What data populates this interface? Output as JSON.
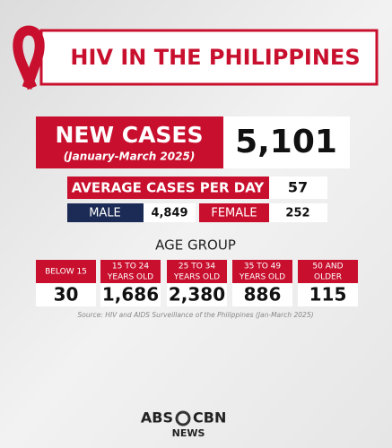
{
  "header": {
    "title": "HIV IN THE PHILIPPINES"
  },
  "new_cases": {
    "label": "NEW CASES",
    "period": "(January-March 2025)",
    "value": "5,101"
  },
  "average": {
    "label": "AVERAGE CASES PER DAY",
    "value": "57"
  },
  "sex": [
    {
      "label": "MALE",
      "value": "4,849"
    },
    {
      "label": "FEMALE",
      "value": "252"
    }
  ],
  "age": {
    "title": "AGE GROUP",
    "groups": [
      {
        "label": [
          "BELOW 15"
        ],
        "value": "30"
      },
      {
        "label": [
          "15 TO 24",
          "YEARS OLD"
        ],
        "value": "1,686"
      },
      {
        "label": [
          "25 TO 34",
          "YEARS OLD"
        ],
        "value": "2,380"
      },
      {
        "label": [
          "35 TO 49",
          "YEARS OLD"
        ],
        "value": "886"
      },
      {
        "label": [
          "50 AND",
          "OLDER"
        ],
        "value": "115"
      }
    ]
  },
  "source": "Source: HIV and AIDS Surveillance of the Philippines (Jan-March 2025)",
  "logo": {
    "left": "ABS",
    "right": "CBN",
    "sub": "NEWS"
  }
}
